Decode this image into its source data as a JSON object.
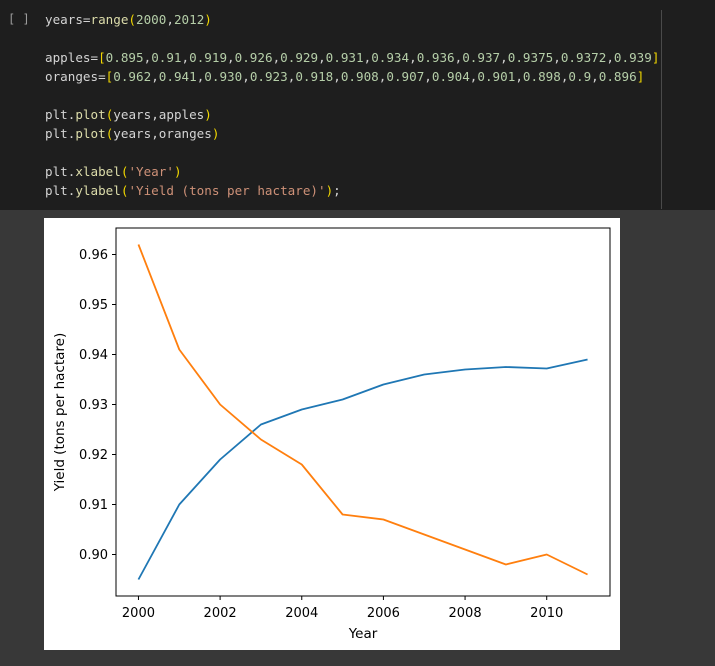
{
  "cell": {
    "run_indicator": "[ ]",
    "lines": [
      {
        "parts": [
          {
            "t": "years=",
            "c": "plain"
          },
          {
            "t": "range",
            "c": "fn"
          },
          {
            "t": "(",
            "c": "br"
          },
          {
            "t": "2000",
            "c": "num"
          },
          {
            "t": ",",
            "c": "plain"
          },
          {
            "t": "2012",
            "c": "num"
          },
          {
            "t": ")",
            "c": "br"
          }
        ]
      },
      {
        "parts": []
      },
      {
        "parts": [
          {
            "t": "apples=",
            "c": "plain"
          },
          {
            "t": "[",
            "c": "br"
          },
          {
            "t": "0.895",
            "c": "num"
          },
          {
            "t": ",",
            "c": "plain"
          },
          {
            "t": "0.91",
            "c": "num"
          },
          {
            "t": ",",
            "c": "plain"
          },
          {
            "t": "0.919",
            "c": "num"
          },
          {
            "t": ",",
            "c": "plain"
          },
          {
            "t": "0.926",
            "c": "num"
          },
          {
            "t": ",",
            "c": "plain"
          },
          {
            "t": "0.929",
            "c": "num"
          },
          {
            "t": ",",
            "c": "plain"
          },
          {
            "t": "0.931",
            "c": "num"
          },
          {
            "t": ",",
            "c": "plain"
          },
          {
            "t": "0.934",
            "c": "num"
          },
          {
            "t": ",",
            "c": "plain"
          },
          {
            "t": "0.936",
            "c": "num"
          },
          {
            "t": ",",
            "c": "plain"
          },
          {
            "t": "0.937",
            "c": "num"
          },
          {
            "t": ",",
            "c": "plain"
          },
          {
            "t": "0.9375",
            "c": "num"
          },
          {
            "t": ",",
            "c": "plain"
          },
          {
            "t": "0.9372",
            "c": "num"
          },
          {
            "t": ",",
            "c": "plain"
          },
          {
            "t": "0.939",
            "c": "num"
          },
          {
            "t": "]",
            "c": "br"
          }
        ]
      },
      {
        "parts": [
          {
            "t": "oranges=",
            "c": "plain"
          },
          {
            "t": "[",
            "c": "br"
          },
          {
            "t": "0.962",
            "c": "num"
          },
          {
            "t": ",",
            "c": "plain"
          },
          {
            "t": "0.941",
            "c": "num"
          },
          {
            "t": ",",
            "c": "plain"
          },
          {
            "t": "0.930",
            "c": "num"
          },
          {
            "t": ",",
            "c": "plain"
          },
          {
            "t": "0.923",
            "c": "num"
          },
          {
            "t": ",",
            "c": "plain"
          },
          {
            "t": "0.918",
            "c": "num"
          },
          {
            "t": ",",
            "c": "plain"
          },
          {
            "t": "0.908",
            "c": "num"
          },
          {
            "t": ",",
            "c": "plain"
          },
          {
            "t": "0.907",
            "c": "num"
          },
          {
            "t": ",",
            "c": "plain"
          },
          {
            "t": "0.904",
            "c": "num"
          },
          {
            "t": ",",
            "c": "plain"
          },
          {
            "t": "0.901",
            "c": "num"
          },
          {
            "t": ",",
            "c": "plain"
          },
          {
            "t": "0.898",
            "c": "num"
          },
          {
            "t": ",",
            "c": "plain"
          },
          {
            "t": "0.9",
            "c": "num"
          },
          {
            "t": ",",
            "c": "plain"
          },
          {
            "t": "0.896",
            "c": "num"
          },
          {
            "t": "]",
            "c": "br"
          }
        ]
      },
      {
        "parts": []
      },
      {
        "parts": [
          {
            "t": "plt.",
            "c": "plain"
          },
          {
            "t": "plot",
            "c": "fn"
          },
          {
            "t": "(",
            "c": "br"
          },
          {
            "t": "years,apples",
            "c": "plain"
          },
          {
            "t": ")",
            "c": "br"
          }
        ]
      },
      {
        "parts": [
          {
            "t": "plt.",
            "c": "plain"
          },
          {
            "t": "plot",
            "c": "fn"
          },
          {
            "t": "(",
            "c": "br"
          },
          {
            "t": "years,oranges",
            "c": "plain"
          },
          {
            "t": ")",
            "c": "br"
          }
        ]
      },
      {
        "parts": []
      },
      {
        "parts": [
          {
            "t": "plt.",
            "c": "plain"
          },
          {
            "t": "xlabel",
            "c": "fn"
          },
          {
            "t": "(",
            "c": "br"
          },
          {
            "t": "'Year'",
            "c": "str"
          },
          {
            "t": ")",
            "c": "br"
          }
        ]
      },
      {
        "parts": [
          {
            "t": "plt.",
            "c": "plain"
          },
          {
            "t": "ylabel",
            "c": "fn"
          },
          {
            "t": "(",
            "c": "br"
          },
          {
            "t": "'Yield (tons per hactare)'",
            "c": "str"
          },
          {
            "t": ")",
            "c": "br"
          },
          {
            "t": ";",
            "c": "plain"
          }
        ]
      }
    ]
  },
  "chart_data": {
    "type": "line",
    "x": [
      2000,
      2001,
      2002,
      2003,
      2004,
      2005,
      2006,
      2007,
      2008,
      2009,
      2010,
      2011
    ],
    "series": [
      {
        "values": [
          0.895,
          0.91,
          0.919,
          0.926,
          0.929,
          0.931,
          0.934,
          0.936,
          0.937,
          0.9375,
          0.9372,
          0.939
        ],
        "color": "#1f77b4"
      },
      {
        "values": [
          0.962,
          0.941,
          0.93,
          0.923,
          0.918,
          0.908,
          0.907,
          0.904,
          0.901,
          0.898,
          0.9,
          0.896
        ],
        "color": "#ff7f0e"
      }
    ],
    "xlabel": "Year",
    "ylabel": "Yield (tons per hactare)",
    "xlim": [
      1999.45,
      2011.55
    ],
    "ylim": [
      0.8917,
      0.9653
    ],
    "xticks": [
      "2000",
      "2002",
      "2004",
      "2006",
      "2008",
      "2010"
    ],
    "xtick_values": [
      2000,
      2002,
      2004,
      2006,
      2008,
      2010
    ],
    "yticks": [
      "0.90",
      "0.91",
      "0.92",
      "0.93",
      "0.94",
      "0.95",
      "0.96"
    ],
    "ytick_values": [
      0.9,
      0.91,
      0.92,
      0.93,
      0.94,
      0.95,
      0.96
    ],
    "grid": false
  }
}
